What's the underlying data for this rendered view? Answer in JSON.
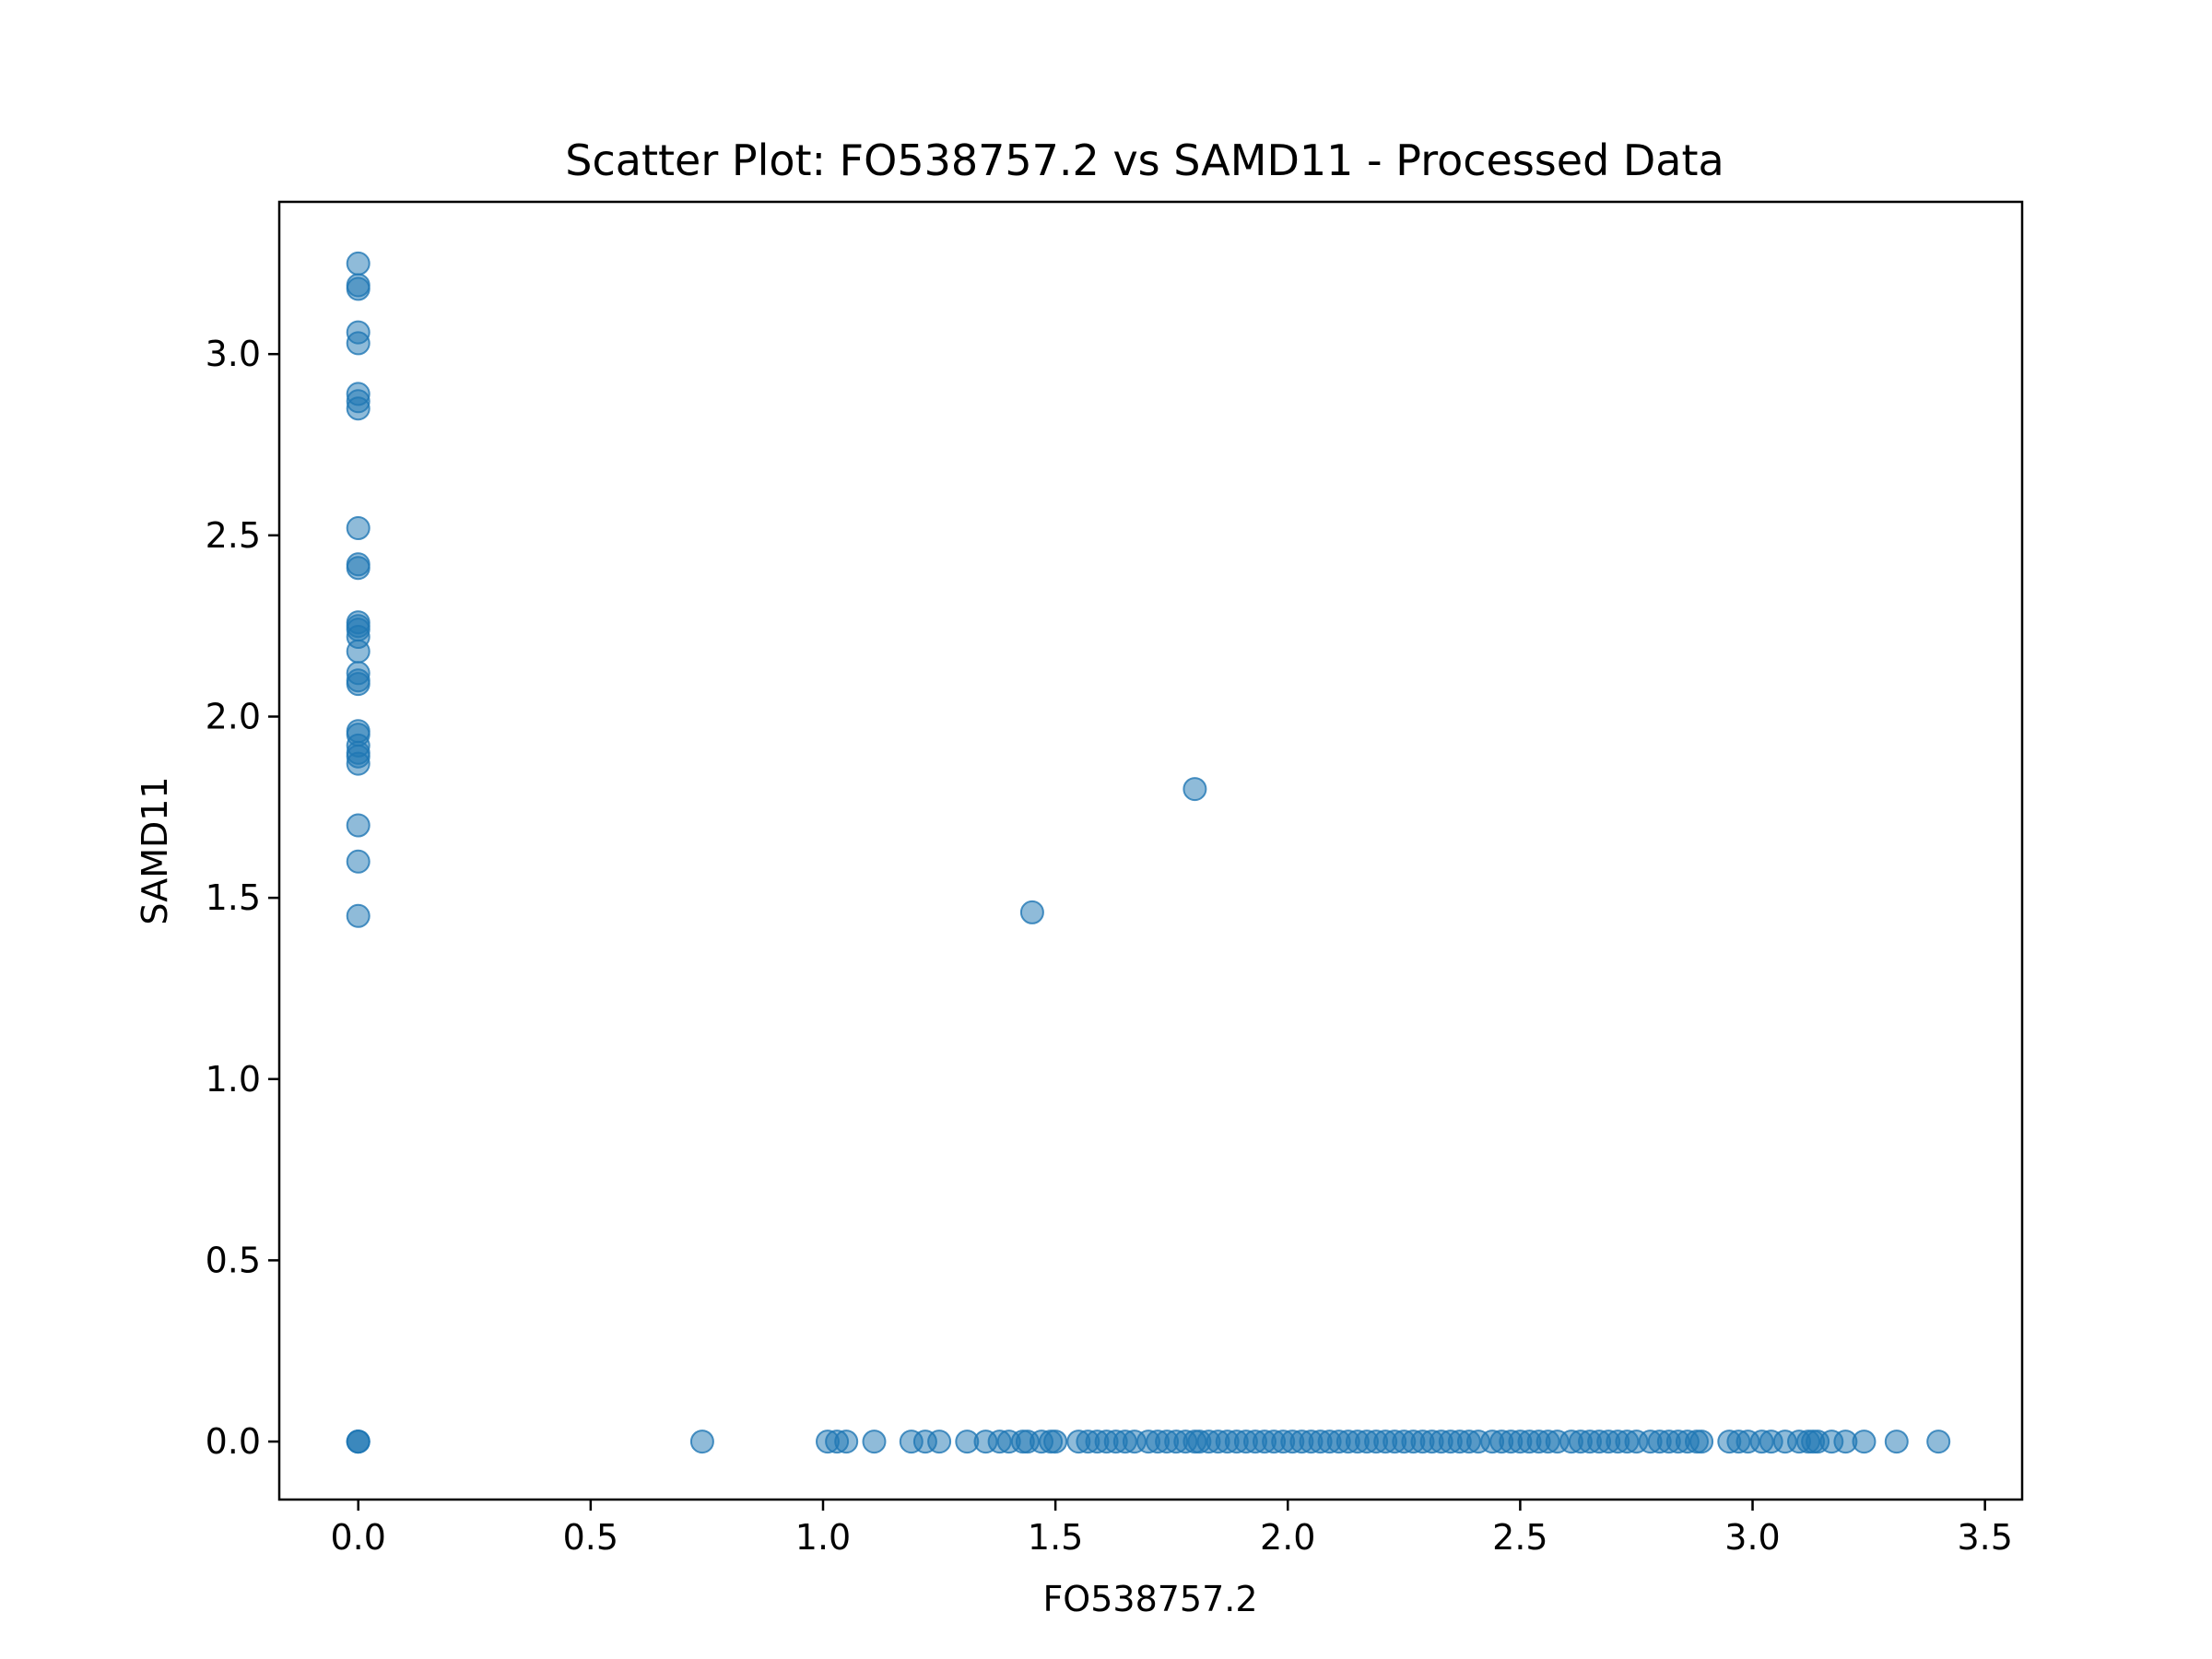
{
  "chart_data": {
    "type": "scatter",
    "title": "Scatter Plot: FO538757.2 vs SAMD11 - Processed Data",
    "xlabel": "FO538757.2",
    "ylabel": "SAMD11",
    "xlim": [
      -0.17,
      3.58
    ],
    "ylim": [
      -0.16,
      3.42
    ],
    "x_ticks": [
      "0.0",
      "0.5",
      "1.0",
      "1.5",
      "2.0",
      "2.5",
      "3.0",
      "3.5"
    ],
    "y_ticks": [
      "0.0",
      "0.5",
      "1.0",
      "1.5",
      "2.0",
      "2.5",
      "3.0"
    ],
    "grid": false,
    "marker_color": "#1f77b4",
    "marker_opacity": 0.5,
    "points": [
      [
        0,
        3.25
      ],
      [
        0,
        3.19
      ],
      [
        0,
        3.18
      ],
      [
        0,
        3.06
      ],
      [
        0,
        3.03
      ],
      [
        0,
        2.89
      ],
      [
        0,
        2.87
      ],
      [
        0,
        2.85
      ],
      [
        0,
        2.52
      ],
      [
        0,
        2.42
      ],
      [
        0,
        2.41
      ],
      [
        0,
        2.26
      ],
      [
        0,
        2.25
      ],
      [
        0,
        2.24
      ],
      [
        0,
        2.22
      ],
      [
        0,
        2.18
      ],
      [
        0,
        2.12
      ],
      [
        0,
        2.1
      ],
      [
        0,
        2.09
      ],
      [
        0,
        1.96
      ],
      [
        0,
        1.95
      ],
      [
        0,
        1.92
      ],
      [
        0,
        1.9
      ],
      [
        0,
        1.89
      ],
      [
        0,
        1.87
      ],
      [
        0,
        1.7
      ],
      [
        0,
        1.6
      ],
      [
        0,
        1.45
      ],
      [
        0,
        0
      ],
      [
        0,
        0
      ],
      [
        0,
        0
      ],
      [
        1.8,
        1.8
      ],
      [
        1.45,
        1.46
      ],
      [
        0.74,
        0
      ],
      [
        1.01,
        0
      ],
      [
        1.03,
        0
      ],
      [
        1.05,
        0
      ],
      [
        1.11,
        0
      ],
      [
        1.19,
        0
      ],
      [
        1.22,
        0
      ],
      [
        1.25,
        0
      ],
      [
        1.31,
        0
      ],
      [
        1.35,
        0
      ],
      [
        1.38,
        0
      ],
      [
        1.4,
        0
      ],
      [
        1.43,
        0
      ],
      [
        1.44,
        0
      ],
      [
        1.47,
        0
      ],
      [
        1.49,
        0
      ],
      [
        1.5,
        0
      ],
      [
        1.55,
        0
      ],
      [
        1.57,
        0
      ],
      [
        1.59,
        0
      ],
      [
        1.61,
        0
      ],
      [
        1.63,
        0
      ],
      [
        1.65,
        0
      ],
      [
        1.67,
        0
      ],
      [
        1.7,
        0
      ],
      [
        1.72,
        0
      ],
      [
        1.74,
        0
      ],
      [
        1.76,
        0
      ],
      [
        1.78,
        0
      ],
      [
        1.8,
        0
      ],
      [
        1.81,
        0
      ],
      [
        1.83,
        0
      ],
      [
        1.85,
        0
      ],
      [
        1.87,
        0
      ],
      [
        1.89,
        0
      ],
      [
        1.91,
        0
      ],
      [
        1.93,
        0
      ],
      [
        1.95,
        0
      ],
      [
        1.97,
        0
      ],
      [
        1.99,
        0
      ],
      [
        2.01,
        0
      ],
      [
        2.03,
        0
      ],
      [
        2.05,
        0
      ],
      [
        2.07,
        0
      ],
      [
        2.09,
        0
      ],
      [
        2.11,
        0
      ],
      [
        2.13,
        0
      ],
      [
        2.15,
        0
      ],
      [
        2.17,
        0
      ],
      [
        2.19,
        0
      ],
      [
        2.21,
        0
      ],
      [
        2.23,
        0
      ],
      [
        2.25,
        0
      ],
      [
        2.27,
        0
      ],
      [
        2.29,
        0
      ],
      [
        2.31,
        0
      ],
      [
        2.33,
        0
      ],
      [
        2.35,
        0
      ],
      [
        2.37,
        0
      ],
      [
        2.39,
        0
      ],
      [
        2.41,
        0
      ],
      [
        2.44,
        0
      ],
      [
        2.46,
        0
      ],
      [
        2.48,
        0
      ],
      [
        2.5,
        0
      ],
      [
        2.52,
        0
      ],
      [
        2.54,
        0
      ],
      [
        2.56,
        0
      ],
      [
        2.58,
        0
      ],
      [
        2.61,
        0
      ],
      [
        2.63,
        0
      ],
      [
        2.65,
        0
      ],
      [
        2.67,
        0
      ],
      [
        2.69,
        0
      ],
      [
        2.71,
        0
      ],
      [
        2.73,
        0
      ],
      [
        2.75,
        0
      ],
      [
        2.78,
        0
      ],
      [
        2.8,
        0
      ],
      [
        2.82,
        0
      ],
      [
        2.84,
        0
      ],
      [
        2.86,
        0
      ],
      [
        2.88,
        0
      ],
      [
        2.89,
        0
      ],
      [
        2.95,
        0
      ],
      [
        2.97,
        0
      ],
      [
        2.99,
        0
      ],
      [
        3.02,
        0
      ],
      [
        3.04,
        0
      ],
      [
        3.07,
        0
      ],
      [
        3.1,
        0
      ],
      [
        3.12,
        0
      ],
      [
        3.13,
        0
      ],
      [
        3.14,
        0
      ],
      [
        3.17,
        0
      ],
      [
        3.2,
        0
      ],
      [
        3.24,
        0
      ],
      [
        3.31,
        0
      ],
      [
        3.4,
        0
      ]
    ]
  }
}
